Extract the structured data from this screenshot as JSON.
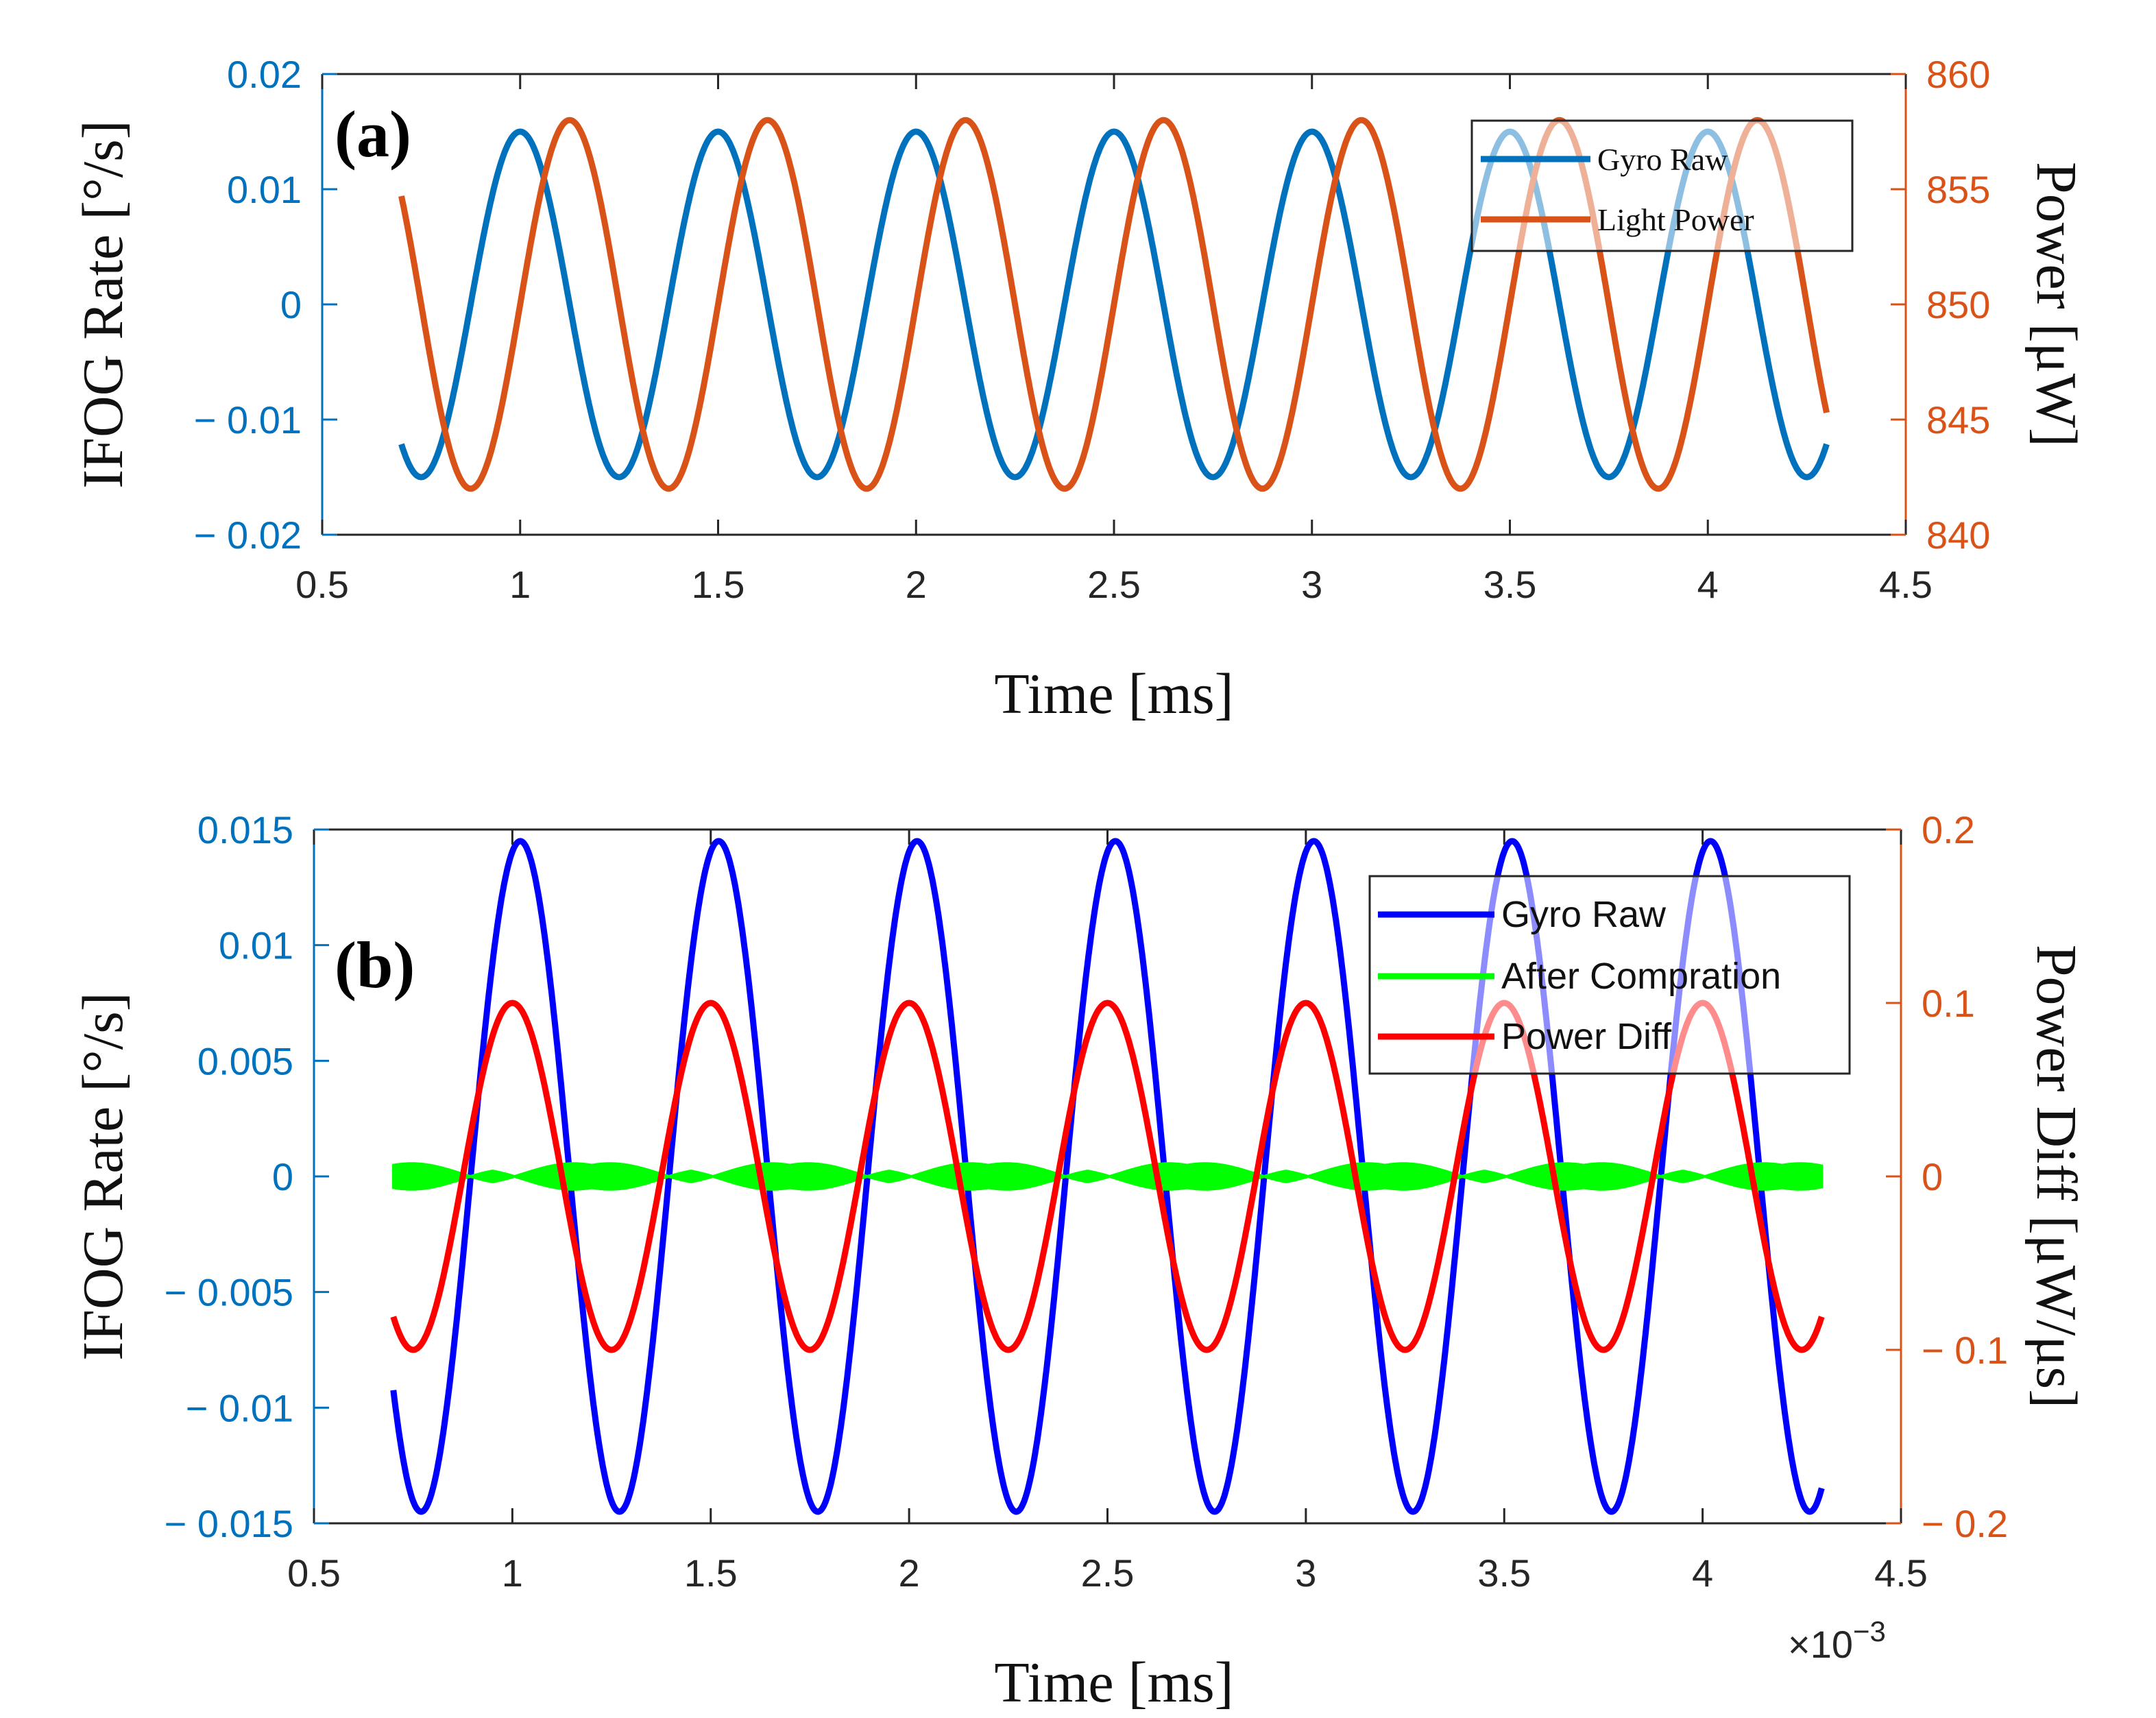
{
  "chart_data": [
    {
      "type": "line",
      "panel_label": "(a)",
      "xlabel": "Time [ms]",
      "ylabel_left": "IFOG Rate [°/s]",
      "ylabel_right": "Power [μW]",
      "xlim": [
        0.5,
        4.5
      ],
      "xticks": [
        0.5,
        1,
        1.5,
        2,
        2.5,
        3,
        3.5,
        4,
        4.5
      ],
      "xtick_labels": [
        "0.5",
        "1",
        "1.5",
        "2",
        "2.5",
        "3",
        "3.5",
        "4",
        "4.5"
      ],
      "ylim_left": [
        -0.02,
        0.02
      ],
      "yticks_left": [
        -0.02,
        -0.01,
        0,
        0.01,
        0.02
      ],
      "ytick_labels_left": [
        "− 0.02",
        "− 0.01",
        "0",
        "0.01",
        "0.02"
      ],
      "ylim_right": [
        840,
        860
      ],
      "yticks_right": [
        840,
        845,
        850,
        855,
        860
      ],
      "ytick_labels_right": [
        "840",
        "845",
        "850",
        "855",
        "860"
      ],
      "legend_position": "top-right",
      "legend_font": "serif",
      "series": [
        {
          "name": "Gyro Raw",
          "axis": "left",
          "color": "#0072BD",
          "kind": "sine",
          "x_start": 0.7,
          "x_end": 4.3,
          "amplitude": 0.015,
          "offset": 0,
          "period": 0.5,
          "peak_at": 1.0
        },
        {
          "name": "Light Power",
          "axis": "right",
          "color": "#D95319",
          "kind": "sine",
          "x_start": 0.7,
          "x_end": 4.3,
          "amplitude": 8,
          "offset": 850,
          "period": 0.5,
          "peak_at": 1.125
        }
      ]
    },
    {
      "type": "line",
      "panel_label": "(b)",
      "xlabel": "Time [ms]",
      "x_exponent_label": "×10",
      "x_exponent_power": "−3",
      "ylabel_left": "IFOG Rate [°/s]",
      "ylabel_right": "Power Diff [μW/μs]",
      "xlim": [
        0.5,
        4.5
      ],
      "xticks": [
        0.5,
        1,
        1.5,
        2,
        2.5,
        3,
        3.5,
        4,
        4.5
      ],
      "xtick_labels": [
        "0.5",
        "1",
        "1.5",
        "2",
        "2.5",
        "3",
        "3.5",
        "4",
        "4.5"
      ],
      "ylim_left": [
        -0.015,
        0.015
      ],
      "yticks_left": [
        -0.015,
        -0.01,
        -0.005,
        0,
        0.005,
        0.01,
        0.015
      ],
      "ytick_labels_left": [
        "− 0.015",
        "− 0.01",
        "− 0.005",
        "0",
        "0.005",
        "0.01",
        "0.015"
      ],
      "ylim_right": [
        -0.2,
        0.2
      ],
      "yticks_right": [
        -0.2,
        -0.1,
        0,
        0.1,
        0.2
      ],
      "ytick_labels_right": [
        "− 0.2",
        "− 0.1",
        "0",
        "0.1",
        "0.2"
      ],
      "legend_position": "top-right",
      "legend_font": "sans",
      "series": [
        {
          "name": "Gyro Raw",
          "axis": "left",
          "color": "#0000FF",
          "kind": "sine",
          "x_start": 0.7,
          "x_end": 4.3,
          "amplitude": 0.0145,
          "offset": 0,
          "period": 0.5,
          "peak_at": 1.02
        },
        {
          "name": "After Compration",
          "axis": "left",
          "color": "#00FF00",
          "kind": "band",
          "x_start": 0.7,
          "x_end": 4.3,
          "amplitude": 0.0006,
          "envelope_period": 0.25,
          "offset": 0
        },
        {
          "name": "Power Diff",
          "axis": "right",
          "color": "#FF0000",
          "kind": "sine",
          "x_start": 0.7,
          "x_end": 4.3,
          "amplitude": 0.1,
          "offset": 0,
          "period": 0.5,
          "peak_at": 1.0
        }
      ]
    }
  ]
}
